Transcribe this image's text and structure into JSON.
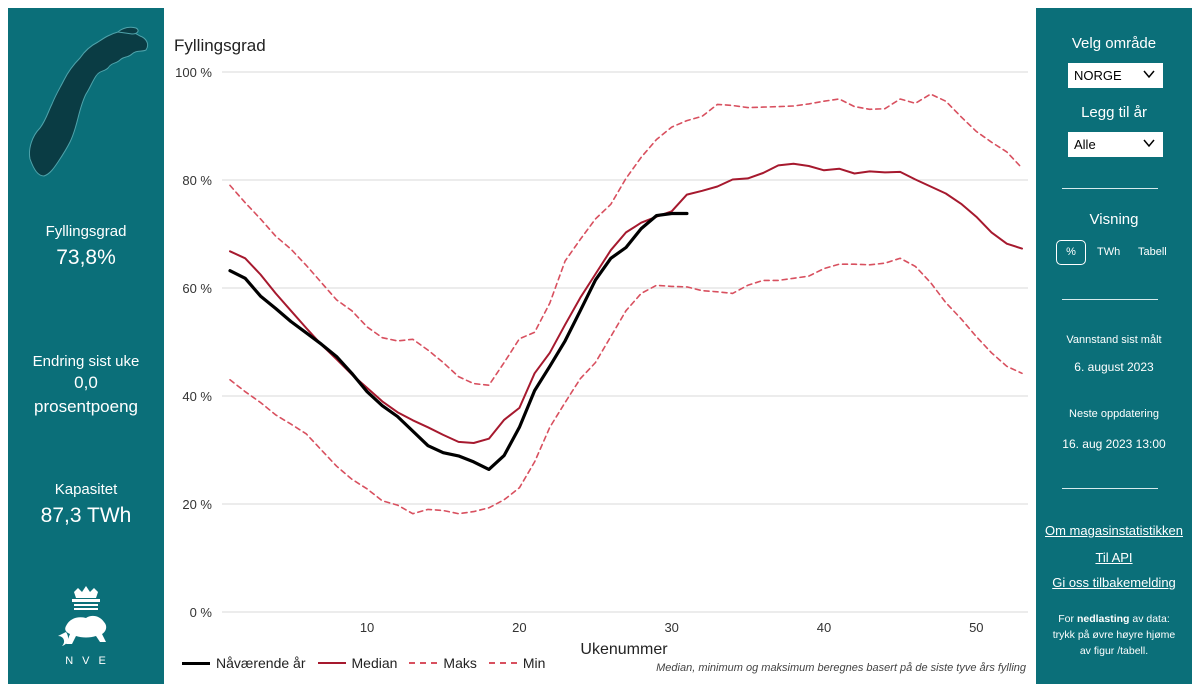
{
  "left": {
    "fill_label": "Fyllingsgrad",
    "fill_value": "73,8%",
    "change_label": "Endring sist uke",
    "change_value": "0,0",
    "change_unit": "prosentpoeng",
    "capacity_label": "Kapasitet",
    "capacity_value": "87,3 TWh",
    "logo_text": "NVE"
  },
  "right": {
    "area_heading": "Velg område",
    "area_selected": "NORGE",
    "year_heading": "Legg til år",
    "year_selected": "Alle",
    "view_heading": "Visning",
    "view_options": [
      "%",
      "TWh",
      "Tabell"
    ],
    "measured_label": "Vannstand sist målt",
    "measured_value": "6. august 2023",
    "next_label": "Neste oppdatering",
    "next_value": "16. aug 2023 13:00",
    "links": [
      "Om magasinstatistikken",
      "Til API",
      "Gi oss tilbakemelding"
    ],
    "download_pre": "For ",
    "download_bold": "nedlasting",
    "download_post": " av data: trykk på øvre høyre hjøme av figur /tabell."
  },
  "chart_title": "Fyllingsgrad",
  "footnote": "Median, minimum og maksimum beregnes basert på de siste tyve års fylling",
  "colors": {
    "panel": "#0b6f79",
    "current": "#000000",
    "median": "#a6192e",
    "max_min": "#d8505f"
  },
  "chart_data": {
    "type": "line",
    "title": "Fyllingsgrad",
    "xlabel": "Ukenummer",
    "ylabel": "",
    "xlim": [
      1,
      53
    ],
    "ylim": [
      0,
      100
    ],
    "x_ticks": [
      10,
      20,
      30,
      40,
      50
    ],
    "y_ticks": [
      "0 %",
      "20 %",
      "40 %",
      "60 %",
      "80 %",
      "100 %"
    ],
    "y_tick_values": [
      0,
      20,
      40,
      60,
      80,
      100
    ],
    "grid": true,
    "legend_position": "bottom-left",
    "series": [
      {
        "name": "Nåværende år",
        "style": "solid-thick",
        "x": [
          1,
          2,
          3,
          4,
          5,
          6,
          7,
          8,
          9,
          10,
          11,
          12,
          13,
          14,
          15,
          16,
          17,
          18,
          19,
          20,
          21,
          22,
          23,
          24,
          25,
          26,
          27,
          28,
          29,
          30,
          31
        ],
        "values": [
          63.2,
          61.8,
          58.5,
          56.2,
          53.8,
          51.7,
          49.6,
          47.3,
          44.2,
          40.8,
          38.2,
          36.2,
          33.5,
          30.8,
          29.5,
          28.9,
          27.8,
          26.4,
          29.0,
          34.2,
          41.0,
          45.5,
          50.2,
          55.8,
          61.5,
          65.5,
          67.5,
          71.0,
          73.4,
          73.8,
          73.8
        ]
      },
      {
        "name": "Median",
        "style": "solid",
        "x": [
          1,
          2,
          3,
          4,
          5,
          6,
          7,
          8,
          9,
          10,
          11,
          12,
          13,
          14,
          15,
          16,
          17,
          18,
          19,
          20,
          21,
          22,
          23,
          24,
          25,
          26,
          27,
          28,
          29,
          30,
          31,
          32,
          33,
          34,
          35,
          36,
          37,
          38,
          39,
          40,
          41,
          42,
          43,
          44,
          45,
          46,
          47,
          48,
          49,
          50,
          51,
          52,
          53
        ],
        "values": [
          66.8,
          65.5,
          62.5,
          59.0,
          55.8,
          52.6,
          49.5,
          46.8,
          44.0,
          41.5,
          39.0,
          37.0,
          35.5,
          34.2,
          32.8,
          31.5,
          31.3,
          32.1,
          35.6,
          37.8,
          44.2,
          48.0,
          53.2,
          58.2,
          62.6,
          67.0,
          70.3,
          72.1,
          73.2,
          74.2,
          77.3,
          78.0,
          78.8,
          80.1,
          80.3,
          81.3,
          82.7,
          83.0,
          82.6,
          81.8,
          82.1,
          81.2,
          81.6,
          81.4,
          81.5,
          80.1,
          78.8,
          77.5,
          75.6,
          73.2,
          70.3,
          68.2,
          67.3
        ]
      },
      {
        "name": "Maks",
        "style": "dashed",
        "x": [
          1,
          2,
          3,
          4,
          5,
          6,
          7,
          8,
          9,
          10,
          11,
          12,
          13,
          14,
          15,
          16,
          17,
          18,
          19,
          20,
          21,
          22,
          23,
          24,
          25,
          26,
          27,
          28,
          29,
          30,
          31,
          32,
          33,
          34,
          35,
          36,
          37,
          38,
          39,
          40,
          41,
          42,
          43,
          44,
          45,
          46,
          47,
          48,
          49,
          50,
          51,
          52,
          53
        ],
        "values": [
          79.0,
          75.8,
          72.8,
          69.6,
          67.2,
          64.2,
          61.0,
          57.8,
          55.8,
          52.8,
          50.8,
          50.2,
          50.5,
          48.5,
          46.2,
          43.6,
          42.3,
          42.0,
          46.2,
          50.6,
          51.8,
          57.2,
          65.0,
          69.0,
          72.8,
          75.5,
          80.3,
          84.2,
          87.5,
          89.8,
          91.0,
          91.8,
          94.0,
          93.8,
          93.4,
          93.5,
          93.6,
          93.7,
          94.1,
          94.6,
          95.0,
          93.6,
          93.1,
          93.2,
          95.0,
          94.2,
          95.9,
          94.6,
          91.7,
          89.0,
          87.0,
          85.2,
          82.2
        ]
      },
      {
        "name": "Min",
        "style": "dashed",
        "x": [
          1,
          2,
          3,
          4,
          5,
          6,
          7,
          8,
          9,
          10,
          11,
          12,
          13,
          14,
          15,
          16,
          17,
          18,
          19,
          20,
          21,
          22,
          23,
          24,
          25,
          26,
          27,
          28,
          29,
          30,
          31,
          32,
          33,
          34,
          35,
          36,
          37,
          38,
          39,
          40,
          41,
          42,
          43,
          44,
          45,
          46,
          47,
          48,
          49,
          50,
          51,
          52,
          53
        ],
        "values": [
          43.0,
          40.8,
          38.8,
          36.5,
          34.8,
          33.0,
          30.0,
          27.0,
          24.6,
          22.8,
          20.6,
          19.8,
          18.2,
          19.0,
          18.8,
          18.2,
          18.6,
          19.3,
          20.8,
          23.0,
          27.8,
          34.2,
          38.8,
          43.2,
          46.2,
          51.0,
          55.8,
          59.0,
          60.5,
          60.3,
          60.2,
          59.5,
          59.3,
          59.0,
          60.5,
          61.4,
          61.4,
          61.8,
          62.2,
          63.6,
          64.4,
          64.4,
          64.3,
          64.6,
          65.5,
          64.0,
          61.0,
          57.3,
          54.3,
          51.0,
          48.0,
          45.5,
          44.2
        ]
      }
    ]
  }
}
